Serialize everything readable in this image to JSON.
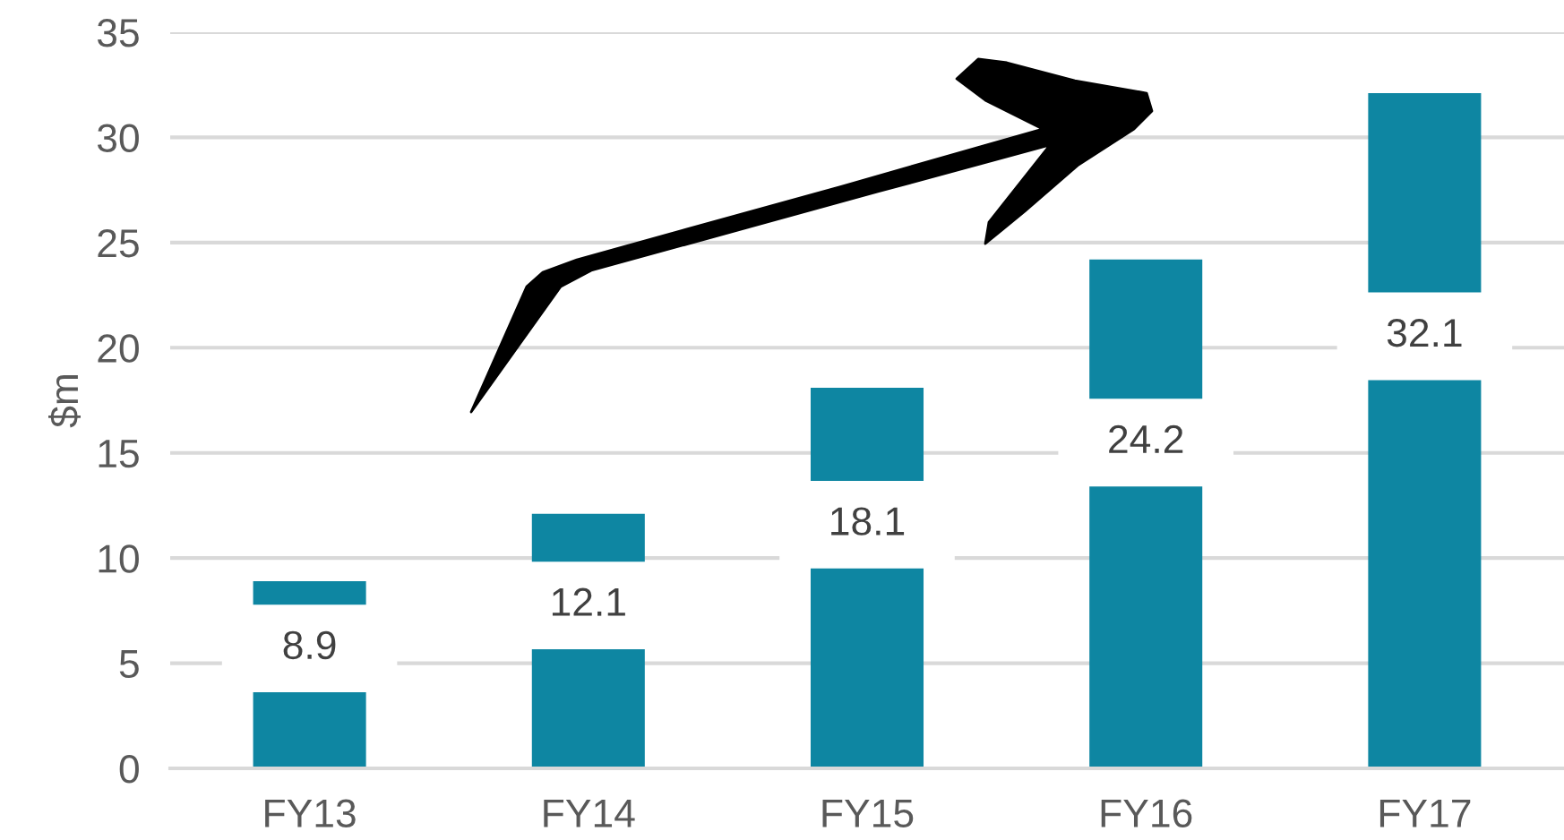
{
  "chart_data": {
    "type": "bar",
    "ylabel": "$m",
    "categories": [
      "FY13",
      "FY14",
      "FY15",
      "FY16",
      "FY17"
    ],
    "values": [
      8.9,
      12.1,
      18.1,
      24.2,
      32.1
    ],
    "color": "#0e86a2",
    "ylim": [
      0,
      35
    ],
    "yticks": [
      0,
      5,
      10,
      15,
      20,
      25,
      30,
      35
    ],
    "grid": "y",
    "data_labels": true
  }
}
